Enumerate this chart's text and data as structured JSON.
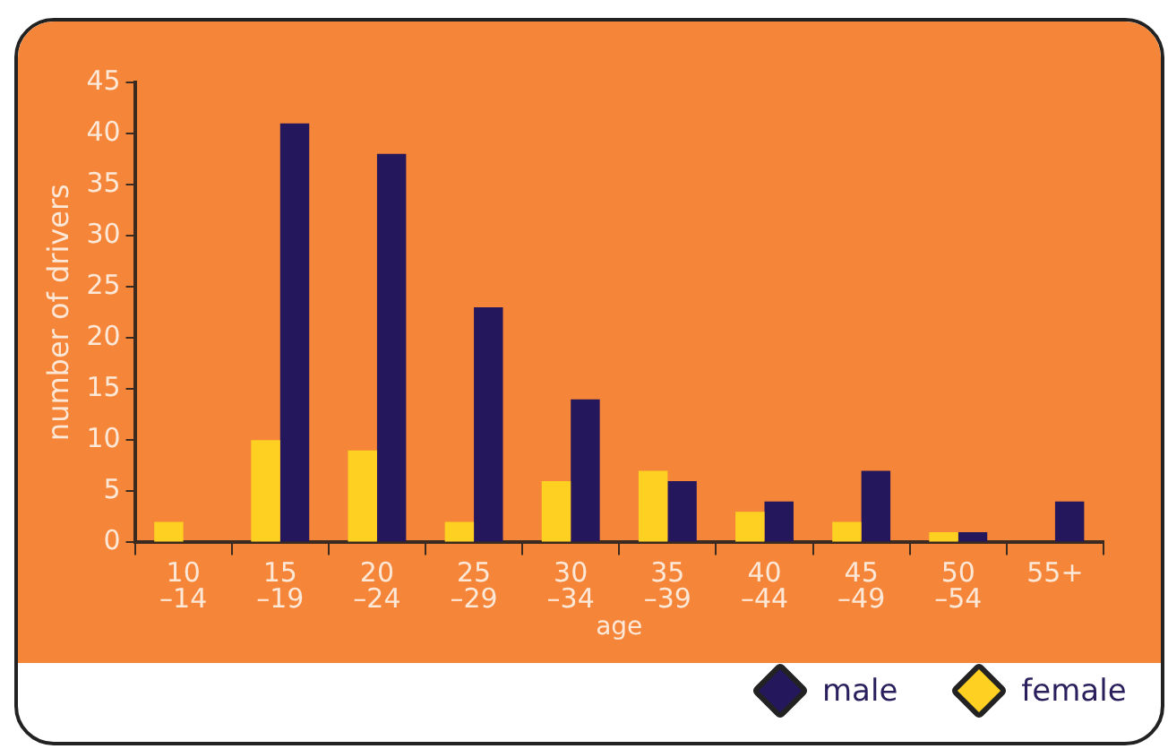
{
  "chart_data": {
    "type": "bar",
    "xlabel": "age",
    "ylabel": "number of drivers",
    "categories": [
      "10\n–14",
      "15\n–19",
      "20\n–24",
      "25\n–29",
      "30\n–34",
      "35\n–39",
      "40\n–44",
      "45\n–49",
      "50\n–54",
      "55+"
    ],
    "series": [
      {
        "name": "female",
        "color": "#fdd022",
        "values": [
          2,
          10,
          9,
          2,
          6,
          7,
          3,
          2,
          1,
          0
        ]
      },
      {
        "name": "male",
        "color": "#25175c",
        "values": [
          0,
          41,
          38,
          23,
          14,
          6,
          4,
          7,
          1,
          4
        ]
      }
    ],
    "ylim": [
      0,
      45
    ],
    "yticks": [
      0,
      5,
      10,
      15,
      20,
      25,
      30,
      35,
      40,
      45
    ],
    "grid": false,
    "legend": "bottom right"
  }
}
